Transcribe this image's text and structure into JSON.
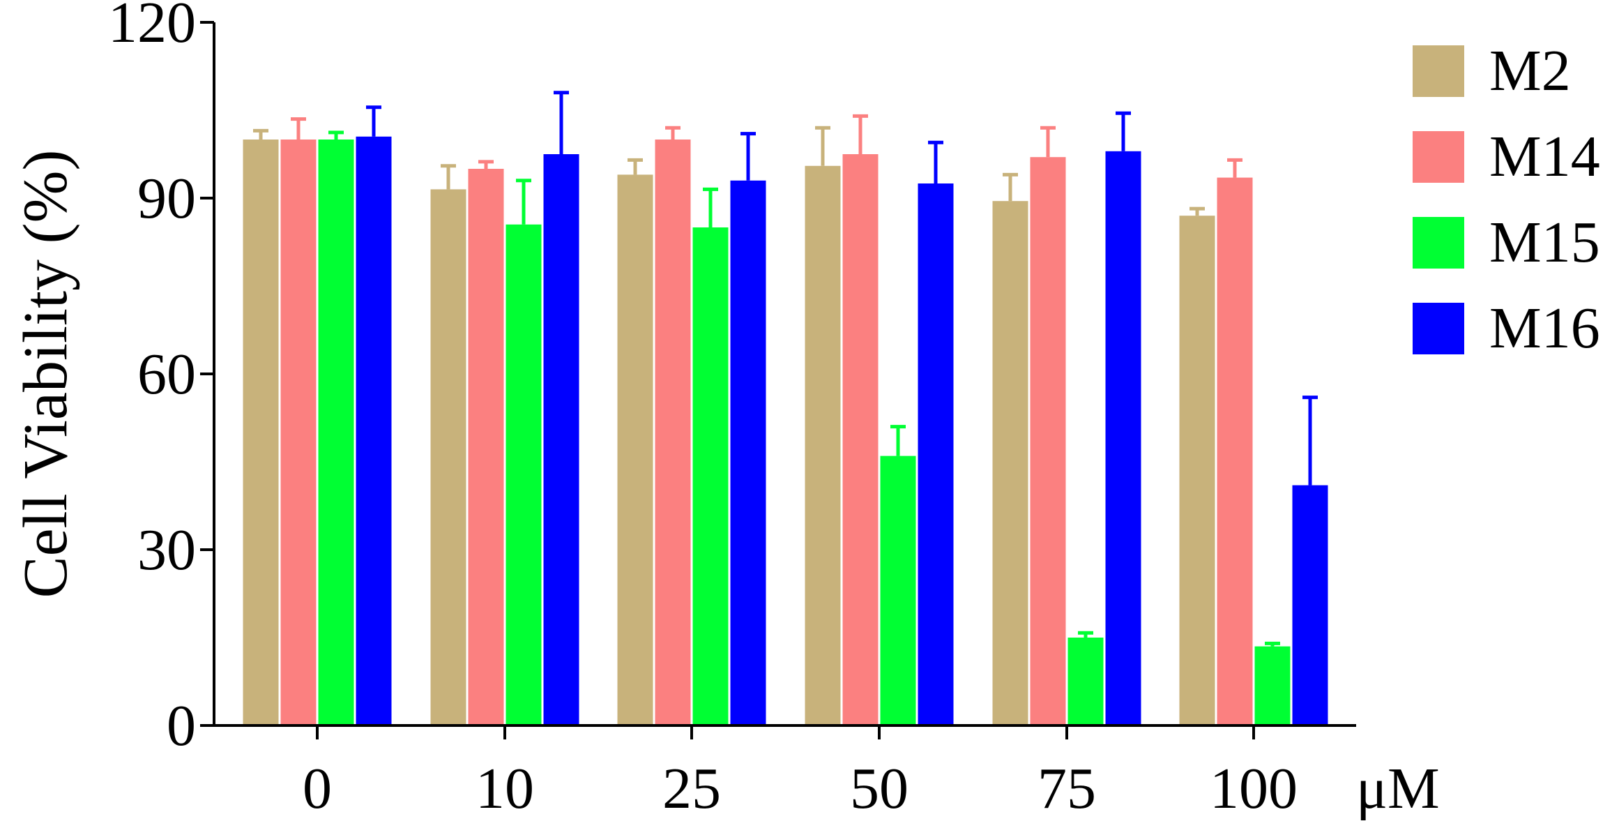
{
  "chart_data": {
    "type": "bar",
    "title": "",
    "ylabel": "Cell Viability (%)",
    "xlabel": "",
    "x_unit": "μM",
    "categories": [
      "0",
      "10",
      "25",
      "50",
      "75",
      "100"
    ],
    "ylim": [
      0,
      120
    ],
    "yticks": [
      0,
      30,
      60,
      90,
      120
    ],
    "grid": false,
    "legend_position": "right",
    "series": [
      {
        "name": "M2",
        "color": "#c8b27b",
        "values": [
          100,
          91.5,
          94,
          95.5,
          89.5,
          87
        ],
        "errors": [
          1.5,
          4,
          2.5,
          6.5,
          4.5,
          1.2
        ]
      },
      {
        "name": "M14",
        "color": "#fb8080",
        "values": [
          100,
          95,
          100,
          97.5,
          97,
          93.5
        ],
        "errors": [
          3.5,
          1.2,
          2,
          6.5,
          5,
          3
        ]
      },
      {
        "name": "M15",
        "color": "#00ff33",
        "values": [
          100,
          85.5,
          85,
          46,
          15,
          13.5
        ],
        "errors": [
          1.2,
          7.5,
          6.5,
          5,
          0.8,
          0.5
        ]
      },
      {
        "name": "M16",
        "color": "#0000ff",
        "values": [
          100.5,
          97.5,
          93,
          92.5,
          98,
          41
        ],
        "errors": [
          5,
          10.5,
          8,
          7,
          6.5,
          15
        ]
      }
    ]
  }
}
